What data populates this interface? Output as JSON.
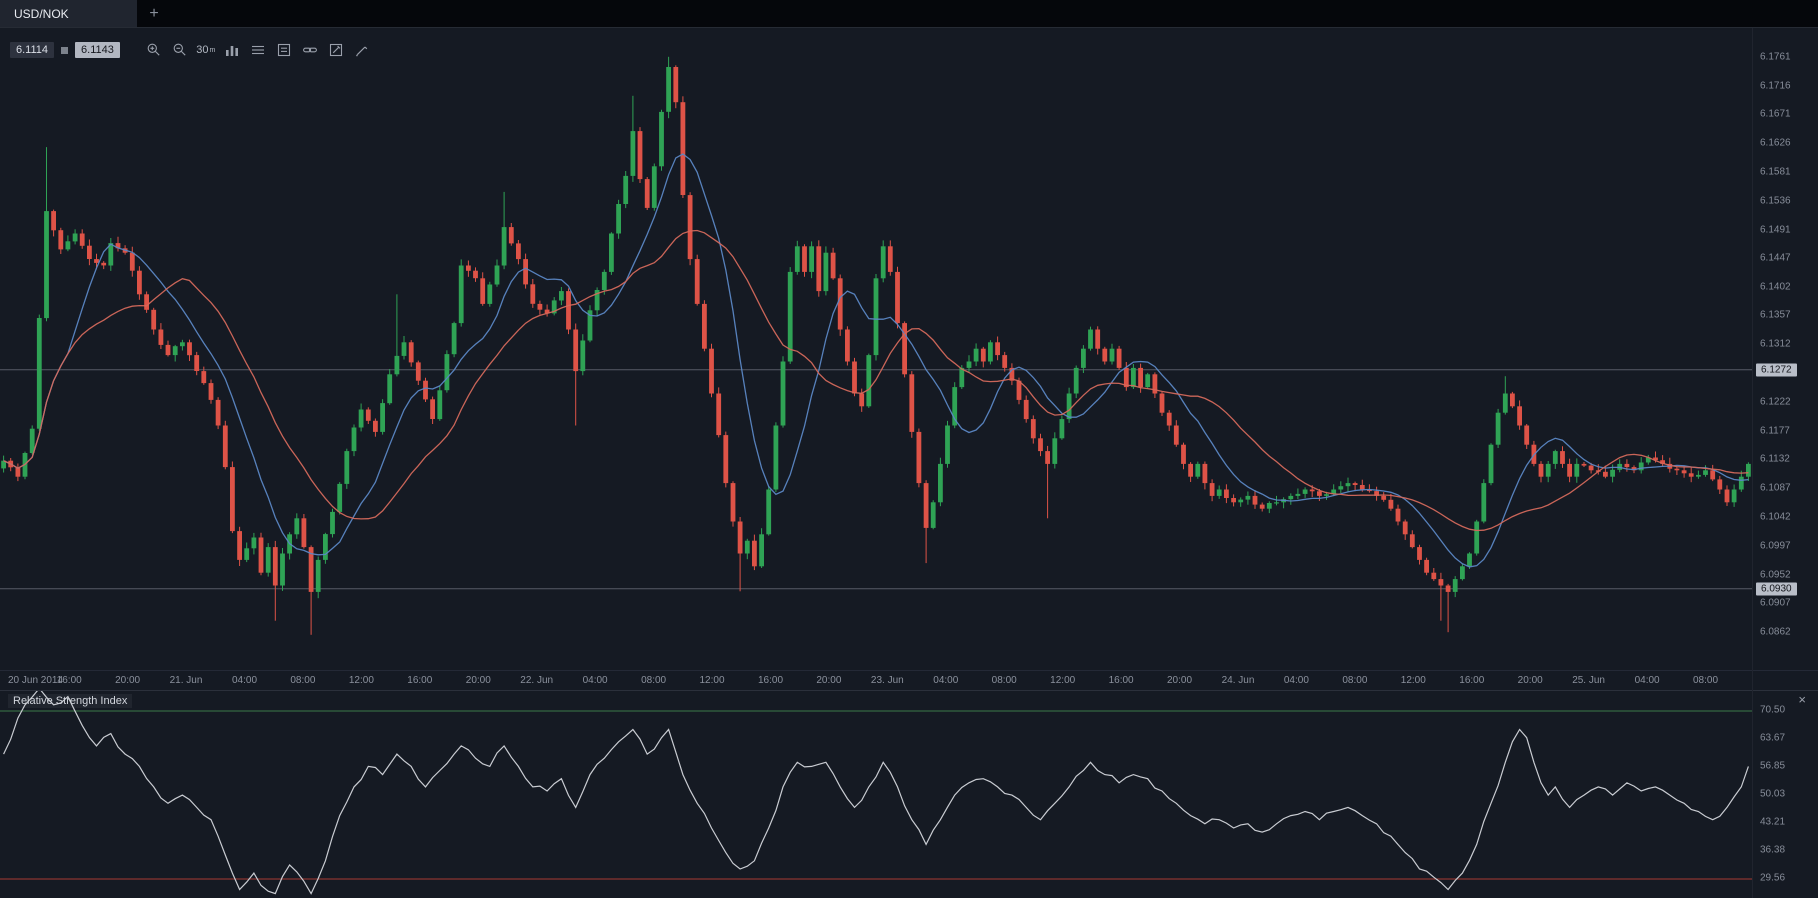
{
  "tabbar": {
    "tabs": [
      {
        "label": "USD/NOK",
        "active": true
      }
    ],
    "new_tab_label": "+"
  },
  "toolbar": {
    "bid": "6.1114",
    "ask": "6.1143",
    "timeframe": "30",
    "timeframe_unit": "m",
    "buttons": [
      "zoom-in",
      "zoom-out",
      "timeframe",
      "chart-type",
      "indicators",
      "templates",
      "link-charts",
      "annotate",
      "draw"
    ]
  },
  "main_chart": {
    "symbol": "USD/NOK",
    "levels": [
      {
        "value": 6.1272,
        "label": "6.1272"
      },
      {
        "value": 6.093,
        "label": "6.0930"
      }
    ],
    "price_axis": {
      "ticks": [
        "6.1761",
        "6.1716",
        "6.1671",
        "6.1626",
        "6.1581",
        "6.1536",
        "6.1491",
        "6.1447",
        "6.1402",
        "6.1357",
        "6.1312",
        "6.1222",
        "6.1177",
        "6.1132",
        "6.1087",
        "6.1042",
        "6.0997",
        "6.0952",
        "6.0907",
        "6.0862"
      ]
    },
    "time_axis": {
      "labels": [
        "20 Jun 2014",
        "16:00",
        "20:00",
        "21. Jun",
        "04:00",
        "08:00",
        "12:00",
        "16:00",
        "20:00",
        "22. Jun",
        "04:00",
        "08:00",
        "12:00",
        "16:00",
        "20:00",
        "23. Jun",
        "04:00",
        "08:00",
        "12:00",
        "16:00",
        "20:00",
        "24. Jun",
        "04:00",
        "08:00",
        "12:00",
        "16:00",
        "20:00",
        "25. Jun",
        "04:00",
        "08:00"
      ]
    }
  },
  "rsi": {
    "title": "Relative Strength Index",
    "close_label": "×",
    "overbought": 70.5,
    "oversold": 29.56,
    "axis_ticks": [
      "70.50",
      "63.67",
      "56.85",
      "50.03",
      "43.21",
      "36.38",
      "29.56"
    ]
  },
  "colors": {
    "up": "#2fa355",
    "down": "#de5347",
    "ma_fast": "#5b87c5",
    "ma_slow": "#d4695c",
    "level_line": "#565b66",
    "rsi_line": "#c9ccd2",
    "overbought": "#3c7a4a",
    "oversold": "#a63b33"
  },
  "chart_data": {
    "type": "candlestick",
    "symbol": "USD/NOK",
    "timeframe": "30m",
    "candle_count": 245,
    "price_range": [
      6.0803,
      6.1806
    ],
    "close_path": [
      [
        0,
        6.113
      ],
      [
        2,
        6.1105
      ],
      [
        4,
        6.118
      ],
      [
        6,
        6.152
      ],
      [
        8,
        6.146
      ],
      [
        10,
        6.1485
      ],
      [
        12,
        6.1445
      ],
      [
        14,
        6.1435
      ],
      [
        15,
        6.147
      ],
      [
        17,
        6.1455
      ],
      [
        19,
        6.139
      ],
      [
        21,
        6.1335
      ],
      [
        23,
        6.1295
      ],
      [
        25,
        6.1315
      ],
      [
        27,
        6.127
      ],
      [
        29,
        6.1225
      ],
      [
        30,
        6.1185
      ],
      [
        31,
        6.112
      ],
      [
        32,
        6.102
      ],
      [
        33,
        6.0975
      ],
      [
        35,
        6.101
      ],
      [
        36,
        6.0955
      ],
      [
        37,
        6.0995
      ],
      [
        38,
        6.0935
      ],
      [
        39,
        6.0985
      ],
      [
        41,
        6.104
      ],
      [
        42,
        6.0995
      ],
      [
        43,
        6.0925
      ],
      [
        44,
        6.0975
      ],
      [
        46,
        6.105
      ],
      [
        48,
        6.1145
      ],
      [
        50,
        6.121
      ],
      [
        52,
        6.1175
      ],
      [
        54,
        6.1265
      ],
      [
        56,
        6.1315
      ],
      [
        58,
        6.1255
      ],
      [
        60,
        6.1195
      ],
      [
        61,
        6.124
      ],
      [
        63,
        6.1345
      ],
      [
        64,
        6.1435
      ],
      [
        66,
        6.1415
      ],
      [
        67,
        6.1375
      ],
      [
        69,
        6.1435
      ],
      [
        70,
        6.1495
      ],
      [
        72,
        6.1445
      ],
      [
        74,
        6.1375
      ],
      [
        76,
        6.136
      ],
      [
        78,
        6.1395
      ],
      [
        79,
        6.1335
      ],
      [
        80,
        6.127
      ],
      [
        82,
        6.1365
      ],
      [
        84,
        6.1425
      ],
      [
        85,
        6.1485
      ],
      [
        87,
        6.1575
      ],
      [
        88,
        6.1645
      ],
      [
        89,
        6.157
      ],
      [
        90,
        6.1525
      ],
      [
        91,
        6.159
      ],
      [
        92,
        6.1675
      ],
      [
        93,
        6.1745
      ],
      [
        94,
        6.169
      ],
      [
        95,
        6.1545
      ],
      [
        96,
        6.1445
      ],
      [
        97,
        6.1375
      ],
      [
        98,
        6.1305
      ],
      [
        99,
        6.1235
      ],
      [
        100,
        6.117
      ],
      [
        101,
        6.1095
      ],
      [
        102,
        6.1035
      ],
      [
        103,
        6.0985
      ],
      [
        104,
        6.1005
      ],
      [
        105,
        6.0965
      ],
      [
        106,
        6.1015
      ],
      [
        107,
        6.1085
      ],
      [
        108,
        6.1185
      ],
      [
        109,
        6.1285
      ],
      [
        110,
        6.1425
      ],
      [
        111,
        6.1465
      ],
      [
        112,
        6.1425
      ],
      [
        113,
        6.1465
      ],
      [
        114,
        6.1395
      ],
      [
        115,
        6.1455
      ],
      [
        116,
        6.1415
      ],
      [
        117,
        6.1335
      ],
      [
        118,
        6.1285
      ],
      [
        119,
        6.1235
      ],
      [
        120,
        6.1215
      ],
      [
        121,
        6.1295
      ],
      [
        122,
        6.1415
      ],
      [
        123,
        6.1465
      ],
      [
        124,
        6.1425
      ],
      [
        125,
        6.1345
      ],
      [
        126,
        6.1265
      ],
      [
        127,
        6.1175
      ],
      [
        128,
        6.1095
      ],
      [
        129,
        6.1025
      ],
      [
        130,
        6.1065
      ],
      [
        131,
        6.1125
      ],
      [
        132,
        6.1185
      ],
      [
        133,
        6.1245
      ],
      [
        134,
        6.1275
      ],
      [
        135,
        6.1285
      ],
      [
        136,
        6.1305
      ],
      [
        137,
        6.1285
      ],
      [
        138,
        6.1315
      ],
      [
        139,
        6.1295
      ],
      [
        140,
        6.1275
      ],
      [
        141,
        6.1255
      ],
      [
        142,
        6.1225
      ],
      [
        143,
        6.1195
      ],
      [
        144,
        6.1165
      ],
      [
        145,
        6.1145
      ],
      [
        146,
        6.1125
      ],
      [
        147,
        6.1165
      ],
      [
        148,
        6.1195
      ],
      [
        149,
        6.1235
      ],
      [
        150,
        6.1275
      ],
      [
        151,
        6.1305
      ],
      [
        152,
        6.1335
      ],
      [
        153,
        6.1305
      ],
      [
        154,
        6.1285
      ],
      [
        155,
        6.1305
      ],
      [
        156,
        6.1275
      ],
      [
        157,
        6.1245
      ],
      [
        158,
        6.1275
      ],
      [
        159,
        6.1245
      ],
      [
        160,
        6.1265
      ],
      [
        161,
        6.1235
      ],
      [
        162,
        6.1205
      ],
      [
        163,
        6.1185
      ],
      [
        164,
        6.1155
      ],
      [
        165,
        6.1125
      ],
      [
        166,
        6.1105
      ],
      [
        167,
        6.1125
      ],
      [
        168,
        6.1095
      ],
      [
        169,
        6.1075
      ],
      [
        170,
        6.1085
      ],
      [
        172,
        6.1065
      ],
      [
        174,
        6.1075
      ],
      [
        176,
        6.1055
      ],
      [
        178,
        6.1065
      ],
      [
        180,
        6.1075
      ],
      [
        182,
        6.1085
      ],
      [
        184,
        6.1075
      ],
      [
        186,
        6.1085
      ],
      [
        188,
        6.1095
      ],
      [
        190,
        6.1085
      ],
      [
        192,
        6.1075
      ],
      [
        194,
        6.1055
      ],
      [
        195,
        6.1035
      ],
      [
        196,
        6.1015
      ],
      [
        197,
        6.0995
      ],
      [
        198,
        6.0975
      ],
      [
        199,
        6.0955
      ],
      [
        200,
        6.0945
      ],
      [
        201,
        6.0935
      ],
      [
        202,
        6.0925
      ],
      [
        203,
        6.0945
      ],
      [
        204,
        6.0965
      ],
      [
        205,
        6.0985
      ],
      [
        206,
        6.1035
      ],
      [
        207,
        6.1095
      ],
      [
        208,
        6.1155
      ],
      [
        209,
        6.1205
      ],
      [
        210,
        6.1235
      ],
      [
        211,
        6.1215
      ],
      [
        212,
        6.1185
      ],
      [
        213,
        6.1155
      ],
      [
        214,
        6.1125
      ],
      [
        215,
        6.1105
      ],
      [
        216,
        6.1125
      ],
      [
        217,
        6.1145
      ],
      [
        218,
        6.1125
      ],
      [
        219,
        6.1105
      ],
      [
        220,
        6.1125
      ],
      [
        222,
        6.1115
      ],
      [
        224,
        6.1105
      ],
      [
        226,
        6.1125
      ],
      [
        228,
        6.1115
      ],
      [
        230,
        6.1135
      ],
      [
        232,
        6.1125
      ],
      [
        234,
        6.1115
      ],
      [
        236,
        6.1105
      ],
      [
        238,
        6.1115
      ],
      [
        240,
        6.1085
      ],
      [
        241,
        6.1065
      ],
      [
        242,
        6.1085
      ],
      [
        243,
        6.1105
      ],
      [
        244,
        6.1125
      ]
    ],
    "extremes": [
      {
        "i": 6,
        "high": 6.162
      },
      {
        "i": 38,
        "low": 6.088
      },
      {
        "i": 43,
        "low": 6.0858
      },
      {
        "i": 55,
        "high": 6.139
      },
      {
        "i": 70,
        "high": 6.155
      },
      {
        "i": 80,
        "low": 6.1185
      },
      {
        "i": 88,
        "high": 6.17
      },
      {
        "i": 93,
        "high": 6.1761
      },
      {
        "i": 103,
        "low": 6.0926
      },
      {
        "i": 129,
        "low": 6.097
      },
      {
        "i": 146,
        "low": 6.104
      },
      {
        "i": 201,
        "low": 6.088
      },
      {
        "i": 202,
        "low": 6.0862
      },
      {
        "i": 210,
        "high": 6.1262
      }
    ],
    "overlays": [
      {
        "name": "ma-fast",
        "period": 10,
        "color": "#5b87c5"
      },
      {
        "name": "ma-slow",
        "period": 21,
        "color": "#d4695c"
      }
    ],
    "indicator": {
      "type": "rsi",
      "levels": [
        70.5,
        29.56
      ],
      "path": [
        [
          0,
          60
        ],
        [
          3,
          72
        ],
        [
          5,
          76
        ],
        [
          7,
          72
        ],
        [
          9,
          74
        ],
        [
          11,
          67
        ],
        [
          13,
          62
        ],
        [
          15,
          65
        ],
        [
          17,
          60
        ],
        [
          19,
          57
        ],
        [
          21,
          52
        ],
        [
          23,
          48
        ],
        [
          25,
          50
        ],
        [
          27,
          47
        ],
        [
          29,
          44
        ],
        [
          30,
          40
        ],
        [
          32,
          31
        ],
        [
          33,
          27
        ],
        [
          35,
          31
        ],
        [
          36,
          28
        ],
        [
          38,
          26
        ],
        [
          40,
          33
        ],
        [
          42,
          29
        ],
        [
          43,
          26
        ],
        [
          45,
          34
        ],
        [
          47,
          45
        ],
        [
          49,
          52
        ],
        [
          51,
          57
        ],
        [
          53,
          55
        ],
        [
          55,
          60
        ],
        [
          57,
          57
        ],
        [
          59,
          52
        ],
        [
          61,
          56
        ],
        [
          63,
          60
        ],
        [
          64,
          62
        ],
        [
          66,
          59
        ],
        [
          68,
          57
        ],
        [
          70,
          62
        ],
        [
          72,
          57
        ],
        [
          74,
          52
        ],
        [
          76,
          51
        ],
        [
          78,
          54
        ],
        [
          80,
          47
        ],
        [
          82,
          55
        ],
        [
          84,
          59
        ],
        [
          86,
          63
        ],
        [
          88,
          66
        ],
        [
          90,
          60
        ],
        [
          92,
          64
        ],
        [
          93,
          66
        ],
        [
          95,
          55
        ],
        [
          97,
          48
        ],
        [
          99,
          42
        ],
        [
          101,
          36
        ],
        [
          103,
          32
        ],
        [
          105,
          34
        ],
        [
          107,
          42
        ],
        [
          109,
          52
        ],
        [
          111,
          58
        ],
        [
          113,
          57
        ],
        [
          115,
          58
        ],
        [
          117,
          52
        ],
        [
          119,
          47
        ],
        [
          121,
          52
        ],
        [
          123,
          58
        ],
        [
          125,
          52
        ],
        [
          127,
          44
        ],
        [
          129,
          38
        ],
        [
          131,
          44
        ],
        [
          133,
          50
        ],
        [
          135,
          53
        ],
        [
          137,
          54
        ],
        [
          139,
          52
        ],
        [
          141,
          50
        ],
        [
          143,
          47
        ],
        [
          145,
          44
        ],
        [
          147,
          48
        ],
        [
          149,
          52
        ],
        [
          151,
          56
        ],
        [
          152,
          58
        ],
        [
          154,
          55
        ],
        [
          156,
          53
        ],
        [
          158,
          55
        ],
        [
          160,
          54
        ],
        [
          162,
          51
        ],
        [
          164,
          48
        ],
        [
          166,
          45
        ],
        [
          168,
          43
        ],
        [
          170,
          44
        ],
        [
          172,
          42
        ],
        [
          174,
          43
        ],
        [
          176,
          41
        ],
        [
          178,
          43
        ],
        [
          180,
          45
        ],
        [
          182,
          46
        ],
        [
          184,
          44
        ],
        [
          186,
          46
        ],
        [
          188,
          47
        ],
        [
          190,
          45
        ],
        [
          192,
          43
        ],
        [
          194,
          40
        ],
        [
          196,
          36
        ],
        [
          198,
          32
        ],
        [
          200,
          30
        ],
        [
          202,
          27
        ],
        [
          204,
          31
        ],
        [
          206,
          38
        ],
        [
          208,
          48
        ],
        [
          210,
          58
        ],
        [
          211,
          63
        ],
        [
          212,
          66
        ],
        [
          213,
          64
        ],
        [
          214,
          58
        ],
        [
          215,
          53
        ],
        [
          216,
          50
        ],
        [
          217,
          52
        ],
        [
          218,
          49
        ],
        [
          219,
          47
        ],
        [
          221,
          50
        ],
        [
          223,
          52
        ],
        [
          225,
          50
        ],
        [
          227,
          53
        ],
        [
          229,
          51
        ],
        [
          231,
          52
        ],
        [
          233,
          50
        ],
        [
          235,
          48
        ],
        [
          237,
          46
        ],
        [
          239,
          44
        ],
        [
          241,
          47
        ],
        [
          243,
          52
        ],
        [
          244,
          57
        ]
      ]
    }
  }
}
